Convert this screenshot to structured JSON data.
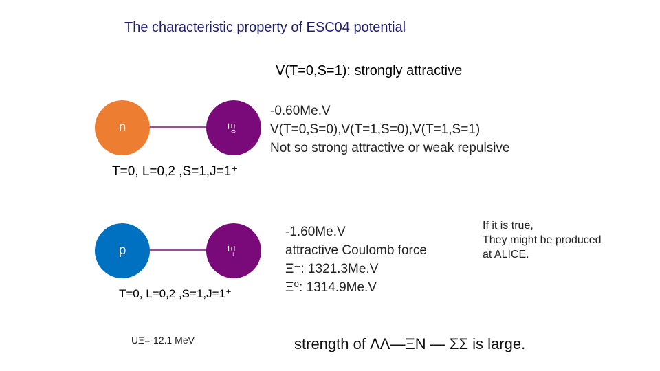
{
  "slide": {
    "title": "The characteristic property of ESC04 potential",
    "subtitle": "V(T=0,S=1): strongly attractive"
  },
  "top_pair": {
    "left_particle": "n",
    "right_particle": "Ξ⁰",
    "quantum_numbers": "T=0, L=0,2 ,S=1,J=1⁺",
    "colors": {
      "left": "#ed7d31",
      "right": "#7a0a7a",
      "bond": "#8b5a86"
    }
  },
  "bottom_pair": {
    "left_particle": "p",
    "right_particle": "Ξ⁻",
    "quantum_numbers": "T=0, L=0,2 ,S=1,J=1⁺",
    "colors": {
      "left": "#0070c0",
      "right": "#7a0a7a",
      "bond": "#8b5a86"
    }
  },
  "top_notes": [
    "-0.60Me.V",
    "V(T=0,S=0),V(T=1,S=0),V(T=1,S=1)",
    "Not so strong attractive or weak repulsive"
  ],
  "bottom_notes": [
    "-1.60Me.V",
    "attractive Coulomb force",
    "Ξ⁻: 1321.3Me.V",
    "Ξ⁰: 1314.9Me.V"
  ],
  "side_note": [
    "If it is true,",
    "They might be produced",
    "at ALICE."
  ],
  "u_xi": "UΞ=-12.1 MeV",
  "strength_statement": "strength of ΛΛ—ΞN — ΣΣ is large."
}
